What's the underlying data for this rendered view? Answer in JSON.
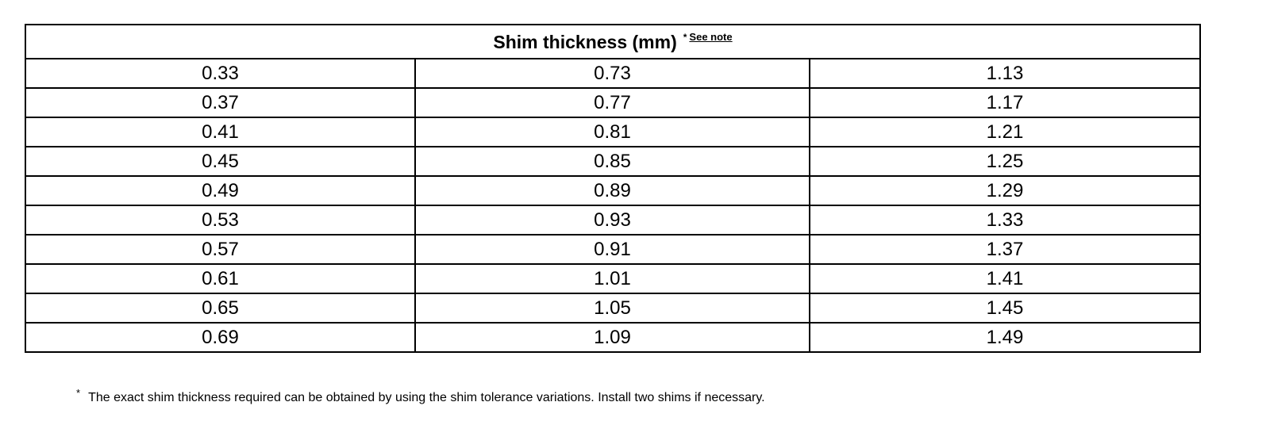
{
  "table": {
    "title": "Shim thickness (mm)",
    "note_marker": "*",
    "note_link": "See note",
    "rows": [
      [
        "0.33",
        "0.73",
        "1.13"
      ],
      [
        "0.37",
        "0.77",
        "1.17"
      ],
      [
        "0.41",
        "0.81",
        "1.21"
      ],
      [
        "0.45",
        "0.85",
        "1.25"
      ],
      [
        "0.49",
        "0.89",
        "1.29"
      ],
      [
        "0.53",
        "0.93",
        "1.33"
      ],
      [
        "0.57",
        "0.91",
        "1.37"
      ],
      [
        "0.61",
        "1.01",
        "1.41"
      ],
      [
        "0.65",
        "1.05",
        "1.45"
      ],
      [
        "0.69",
        "1.09",
        "1.49"
      ]
    ]
  },
  "footnote": {
    "marker": "*",
    "text": "The exact shim thickness required can be obtained by using the shim tolerance variations. Install two shims if necessary."
  }
}
